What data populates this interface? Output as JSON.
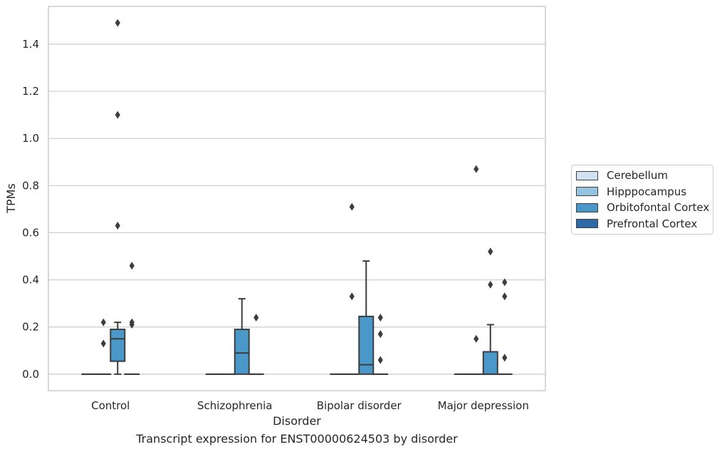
{
  "chart_data": {
    "type": "box",
    "title": "",
    "caption": "Transcript expression for ENST00000624503 by disorder",
    "xlabel": "Disorder",
    "ylabel": "TPMs",
    "ylim": [
      -0.07,
      1.56
    ],
    "yticks": [
      "0.0",
      "0.2",
      "0.4",
      "0.6",
      "0.8",
      "1.0",
      "1.2",
      "1.4"
    ],
    "ytick_values": [
      0.0,
      0.2,
      0.4,
      0.6,
      0.8,
      1.0,
      1.2,
      1.4
    ],
    "grid": "horizontal",
    "legend_placement": "right",
    "categories": [
      "Control",
      "Schizophrenia",
      "Bipolar disorder",
      "Major depression"
    ],
    "series": [
      {
        "name": "Cerebellum",
        "color": "#d0e1f2",
        "boxes": [
          {
            "q1": 0,
            "median": 0,
            "q3": 0,
            "whisker_low": 0,
            "whisker_high": 0,
            "outliers": []
          },
          {
            "q1": 0,
            "median": 0,
            "q3": 0,
            "whisker_low": 0,
            "whisker_high": 0,
            "outliers": []
          },
          {
            "q1": 0,
            "median": 0,
            "q3": 0,
            "whisker_low": 0,
            "whisker_high": 0,
            "outliers": []
          },
          {
            "q1": 0,
            "median": 0,
            "q3": 0,
            "whisker_low": 0,
            "whisker_high": 0,
            "outliers": []
          }
        ]
      },
      {
        "name": "Hipppocampus",
        "color": "#94c4df",
        "boxes": [
          {
            "q1": 0,
            "median": 0,
            "q3": 0,
            "whisker_low": 0,
            "whisker_high": 0,
            "outliers": [
              0.22,
              0.13
            ]
          },
          {
            "q1": 0,
            "median": 0,
            "q3": 0,
            "whisker_low": 0,
            "whisker_high": 0,
            "outliers": []
          },
          {
            "q1": 0,
            "median": 0,
            "q3": 0,
            "whisker_low": 0,
            "whisker_high": 0,
            "outliers": [
              0.71,
              0.33
            ]
          },
          {
            "q1": 0,
            "median": 0,
            "q3": 0,
            "whisker_low": 0,
            "whisker_high": 0,
            "outliers": [
              0.87,
              0.15
            ]
          }
        ]
      },
      {
        "name": "Orbitofontal Cortex",
        "color": "#4a98c9",
        "boxes": [
          {
            "q1": 0.055,
            "median": 0.15,
            "q3": 0.19,
            "whisker_low": 0,
            "whisker_high": 0.22,
            "outliers": [
              1.49,
              1.1,
              0.63
            ]
          },
          {
            "q1": 0,
            "median": 0.09,
            "q3": 0.19,
            "whisker_low": 0,
            "whisker_high": 0.32,
            "outliers": []
          },
          {
            "q1": 0,
            "median": 0.04,
            "q3": 0.245,
            "whisker_low": 0,
            "whisker_high": 0.48,
            "outliers": []
          },
          {
            "q1": 0,
            "median": 0,
            "q3": 0.095,
            "whisker_low": 0,
            "whisker_high": 0.21,
            "outliers": [
              0.52,
              0.38
            ]
          }
        ]
      },
      {
        "name": "Prefrontal Cortex",
        "color": "#2e69a8",
        "boxes": [
          {
            "q1": 0,
            "median": 0,
            "q3": 0,
            "whisker_low": 0,
            "whisker_high": 0,
            "outliers": [
              0.46,
              0.22,
              0.21
            ]
          },
          {
            "q1": 0,
            "median": 0,
            "q3": 0,
            "whisker_low": 0,
            "whisker_high": 0,
            "outliers": [
              0.24
            ]
          },
          {
            "q1": 0,
            "median": 0,
            "q3": 0,
            "whisker_low": 0,
            "whisker_high": 0,
            "outliers": [
              0.24,
              0.17,
              0.06
            ]
          },
          {
            "q1": 0,
            "median": 0,
            "q3": 0,
            "whisker_low": 0,
            "whisker_high": 0,
            "outliers": [
              0.39,
              0.33,
              0.07
            ]
          }
        ]
      }
    ]
  }
}
